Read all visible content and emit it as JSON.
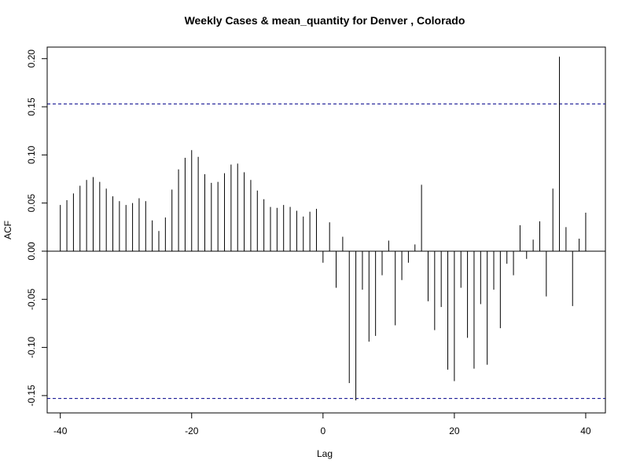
{
  "chart_data": {
    "type": "bar",
    "subtype": "ccf-stem",
    "title": "Weekly Cases & mean_quantity for Denver , Colorado",
    "xlabel": "Lag",
    "ylabel": "ACF",
    "xlim": [
      -42,
      43
    ],
    "ylim": [
      -0.168,
      0.212
    ],
    "x_ticks": [
      -40,
      -20,
      0,
      20,
      40
    ],
    "y_ticks": [
      -0.15,
      -0.1,
      -0.05,
      0.0,
      0.05,
      0.1,
      0.15,
      0.2
    ],
    "y_tick_labels": [
      "-0.15",
      "-0.10",
      "-0.05",
      "0.00",
      "0.05",
      "0.10",
      "0.15",
      "0.20"
    ],
    "confidence_band": [
      -0.153,
      0.153
    ],
    "grid": false,
    "colors": {
      "line": "#000000",
      "band": "#00008b"
    },
    "x": [
      -40,
      -39,
      -38,
      -37,
      -36,
      -35,
      -34,
      -33,
      -32,
      -31,
      -30,
      -29,
      -28,
      -27,
      -26,
      -25,
      -24,
      -23,
      -22,
      -21,
      -20,
      -19,
      -18,
      -17,
      -16,
      -15,
      -14,
      -13,
      -12,
      -11,
      -10,
      -9,
      -8,
      -7,
      -6,
      -5,
      -4,
      -3,
      -2,
      -1,
      0,
      1,
      2,
      3,
      4,
      5,
      6,
      7,
      8,
      9,
      10,
      11,
      12,
      13,
      14,
      15,
      16,
      17,
      18,
      19,
      20,
      21,
      22,
      23,
      24,
      25,
      26,
      27,
      28,
      29,
      30,
      31,
      32,
      33,
      34,
      35,
      36,
      37,
      38,
      39,
      40
    ],
    "values": [
      0.048,
      0.053,
      0.06,
      0.068,
      0.074,
      0.077,
      0.072,
      0.065,
      0.057,
      0.052,
      0.048,
      0.05,
      0.055,
      0.052,
      0.032,
      0.021,
      0.035,
      0.064,
      0.085,
      0.097,
      0.105,
      0.098,
      0.08,
      0.071,
      0.072,
      0.081,
      0.09,
      0.091,
      0.082,
      0.074,
      0.063,
      0.054,
      0.046,
      0.045,
      0.048,
      0.046,
      0.042,
      0.036,
      0.041,
      0.044,
      -0.012,
      0.03,
      -0.038,
      0.015,
      -0.137,
      -0.155,
      -0.04,
      -0.094,
      -0.088,
      -0.025,
      0.011,
      -0.077,
      -0.03,
      -0.012,
      0.007,
      0.069,
      -0.052,
      -0.082,
      -0.058,
      -0.123,
      -0.135,
      -0.038,
      -0.09,
      -0.122,
      -0.055,
      -0.118,
      -0.04,
      -0.08,
      -0.013,
      -0.025,
      0.027,
      -0.008,
      0.012,
      0.031,
      -0.047,
      0.065,
      0.202,
      0.025,
      -0.057,
      0.013,
      0.04
    ]
  }
}
